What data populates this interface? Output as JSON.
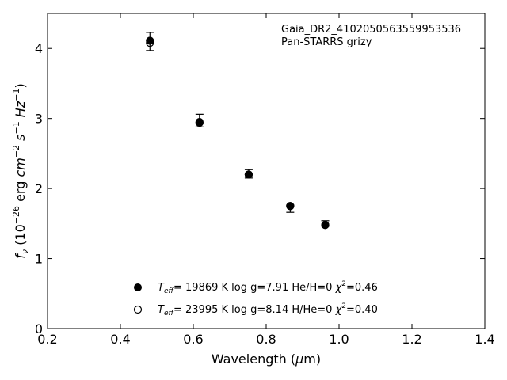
{
  "chart_data": {
    "type": "scatter",
    "annotation": [
      "Gaia_DR2_4102050563559953536",
      "Pan-STARRS grizy"
    ],
    "xlabel": "Wavelength (μm)",
    "ylabel": "fν (10⁻²⁶ erg cm⁻² s⁻¹ Hz⁻¹)",
    "xlim": [
      0.2,
      1.4
    ],
    "ylim": [
      0,
      4.5
    ],
    "x_ticks": [
      0.2,
      0.4,
      0.6,
      0.8,
      1.0,
      1.2,
      1.4
    ],
    "x_tick_labels": [
      "0.2",
      "0.4",
      "0.6",
      "0.8",
      "1.0",
      "1.2",
      "1.4"
    ],
    "y_ticks": [
      0,
      1,
      2,
      3,
      4
    ],
    "y_tick_labels": [
      "0",
      "1",
      "2",
      "3",
      "4"
    ],
    "grid": false,
    "legend_position": "bottom-center",
    "observed": {
      "x": [
        0.481,
        0.617,
        0.752,
        0.866,
        0.962
      ],
      "y": [
        4.1,
        2.97,
        2.21,
        1.71,
        1.5
      ],
      "yerr": [
        0.13,
        0.09,
        0.06,
        0.05,
        0.04
      ]
    },
    "series": [
      {
        "name": "Teff= 19869 K  log g=7.91  He/H=0  χ²=0.46",
        "marker": "filled",
        "x": [
          0.481,
          0.617,
          0.752,
          0.866,
          0.962
        ],
        "y": [
          4.11,
          2.95,
          2.2,
          1.75,
          1.48
        ]
      },
      {
        "name": "Teff= 23995 K  log g=8.14  H/He=0  χ²=0.40",
        "marker": "open",
        "x": [
          0.481,
          0.617,
          0.752,
          0.866,
          0.962
        ],
        "y": [
          4.08,
          2.94,
          2.2,
          1.75,
          1.48
        ]
      }
    ]
  }
}
